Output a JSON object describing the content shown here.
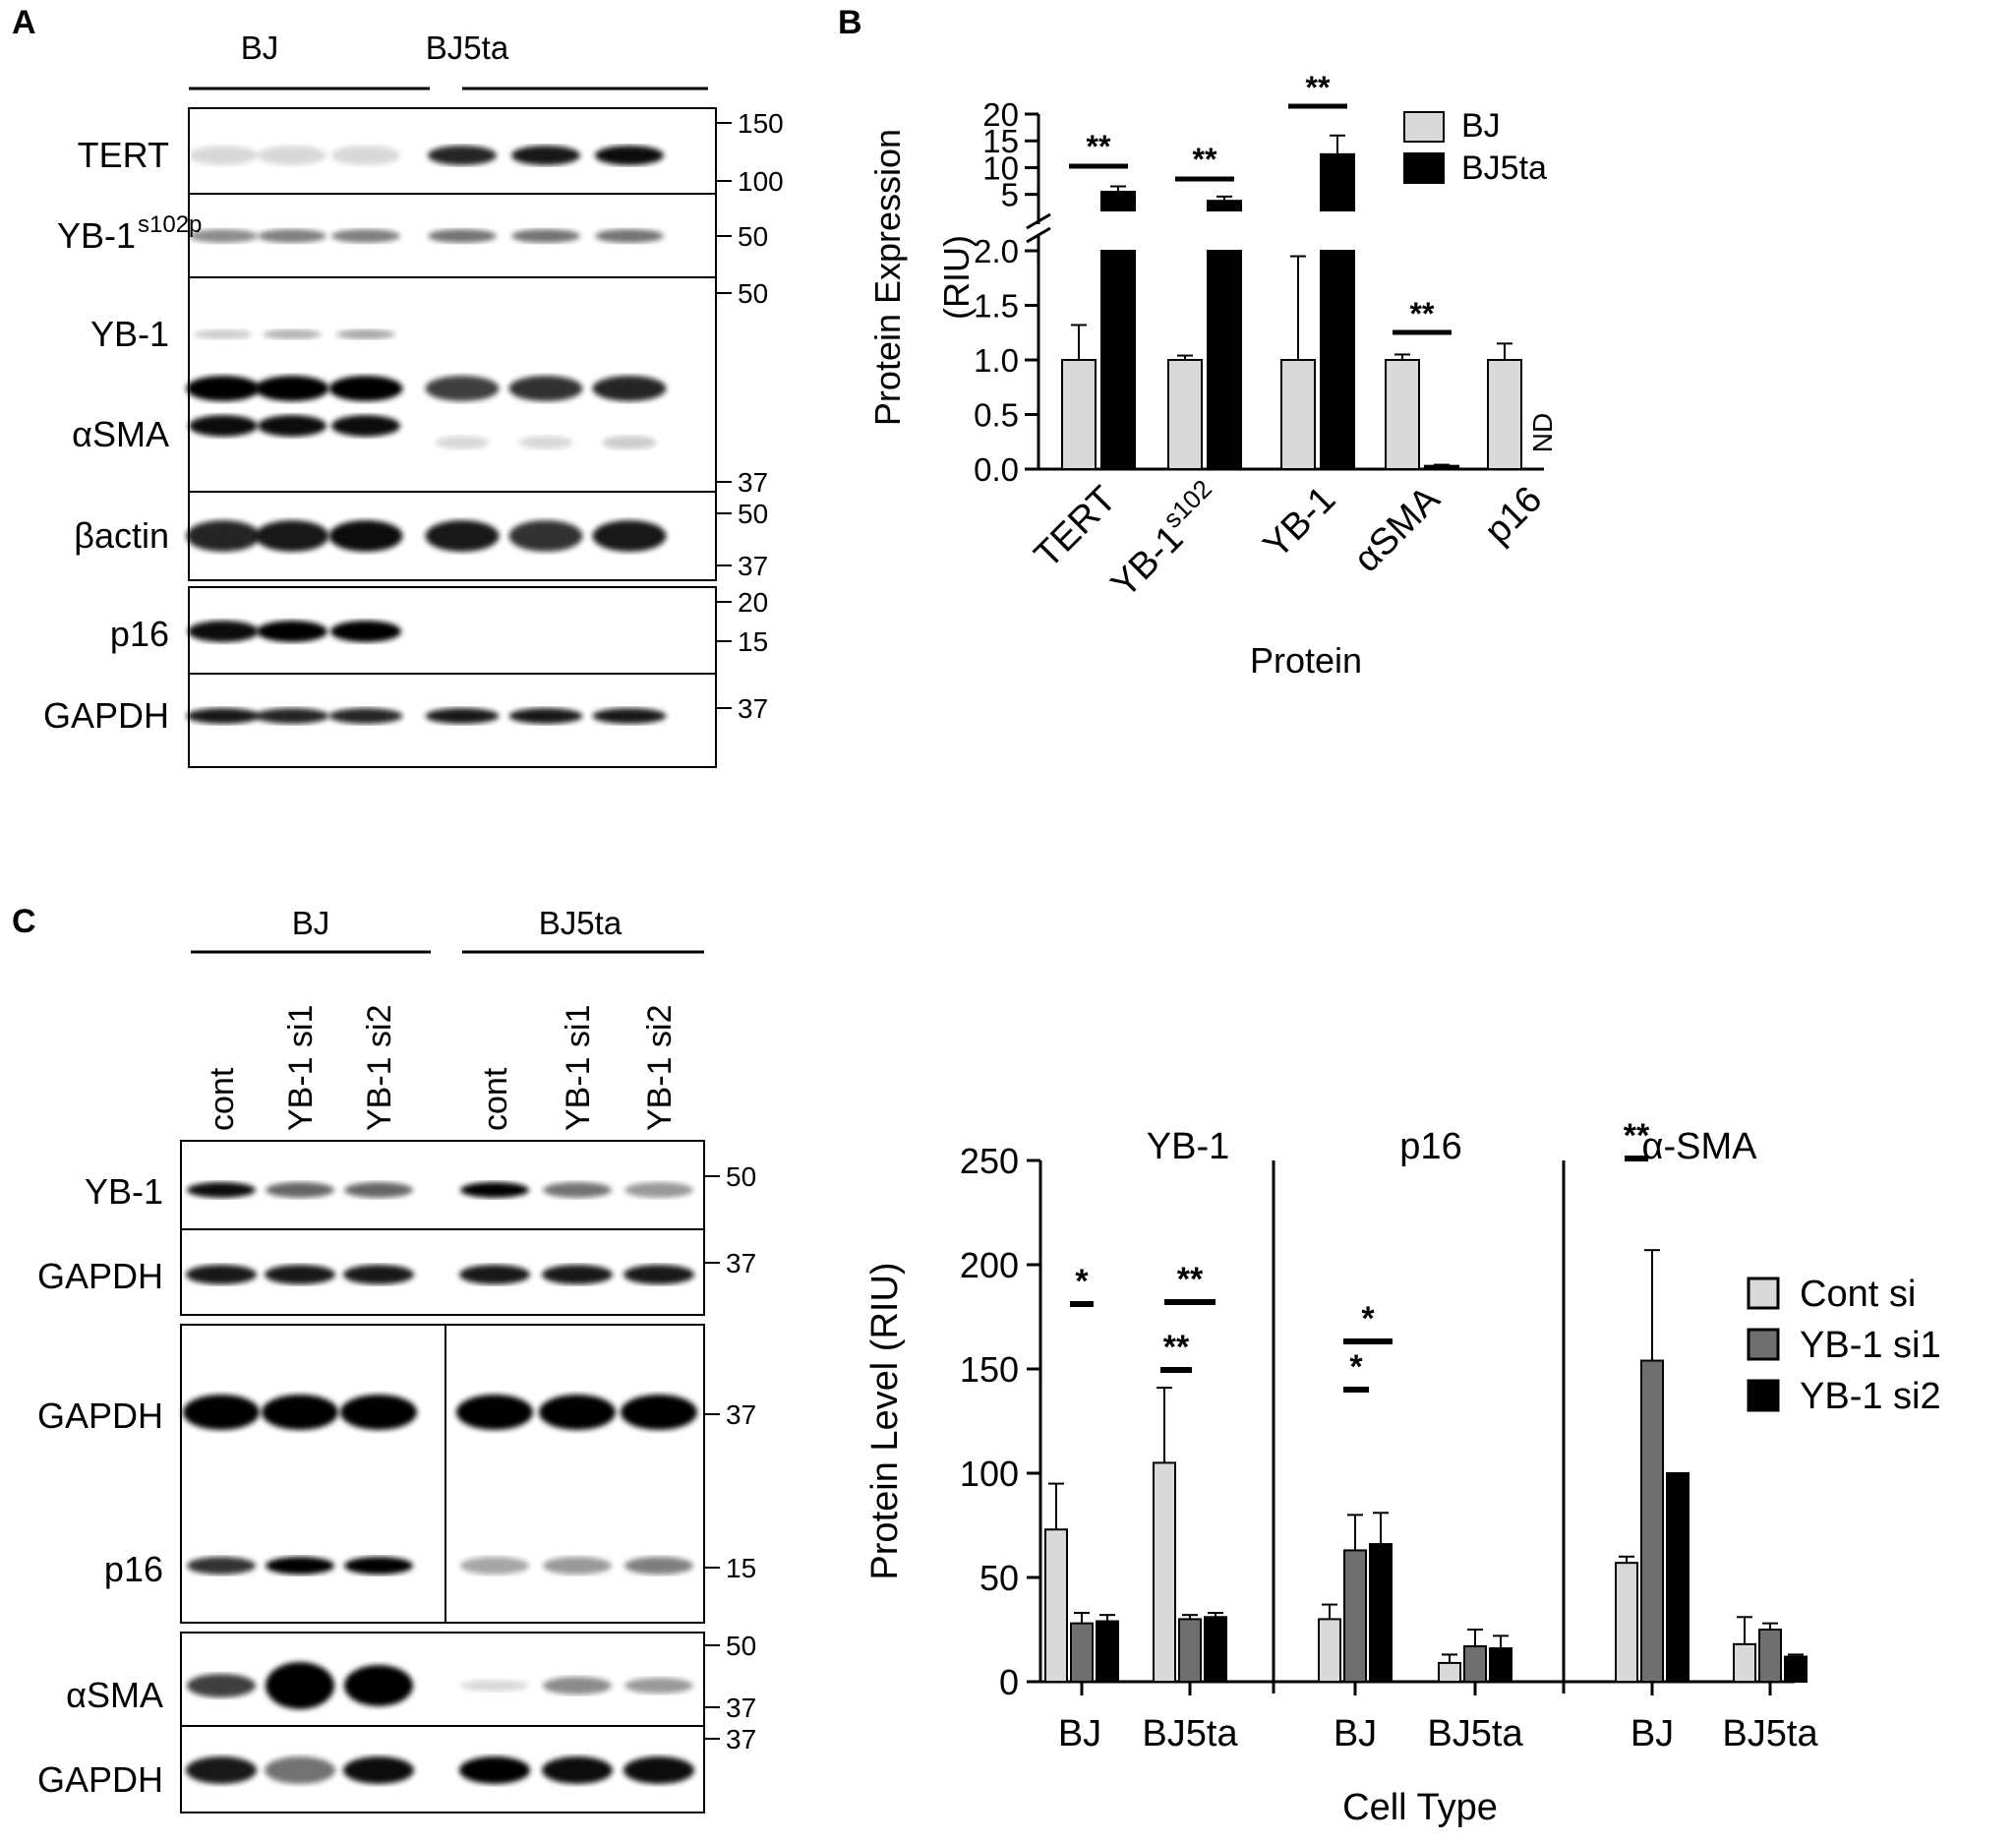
{
  "panels": {
    "A": {
      "letter": "A",
      "groups": [
        "BJ",
        "BJ5ta"
      ],
      "rows": [
        {
          "label": "TERT",
          "mw": [
            "150",
            "100"
          ]
        },
        {
          "label": "YB-1",
          "sup": "s102p",
          "mw": [
            "50"
          ]
        },
        {
          "label": "YB-1",
          "mw": [
            "50"
          ]
        },
        {
          "label": "αSMA",
          "mw": [
            "37"
          ]
        },
        {
          "label": "βactin",
          "mw": [
            "50",
            "37"
          ]
        },
        {
          "label": "p16",
          "mw": [
            "20",
            "15"
          ]
        },
        {
          "label": "GAPDH",
          "mw": [
            "37"
          ]
        }
      ]
    },
    "B": {
      "letter": "B",
      "legend": [
        "BJ",
        "BJ5ta"
      ],
      "nd": "ND",
      "sig": "**"
    },
    "C": {
      "letter": "C",
      "groups": [
        "BJ",
        "BJ5ta"
      ],
      "lanes": [
        "cont",
        "YB-1 si1",
        "YB-1 si2",
        "cont",
        "YB-1 si1",
        "YB-1 si2"
      ],
      "rows": [
        {
          "label": "YB-1",
          "mw": [
            "50"
          ]
        },
        {
          "label": "GAPDH",
          "mw": [
            "37"
          ]
        },
        {
          "label": "GAPDH",
          "mw": [
            "37"
          ]
        },
        {
          "label": "p16",
          "mw": [
            "15"
          ]
        },
        {
          "label": "αSMA",
          "mw": [
            "50",
            "37"
          ]
        },
        {
          "label": "GAPDH",
          "mw": [
            "37"
          ]
        }
      ]
    },
    "D": {
      "legend": [
        "Cont si",
        "YB-1 si1",
        "YB-1 si2"
      ],
      "sig_single": "*",
      "sig_double": "**"
    }
  },
  "chart_data": [
    {
      "type": "bar",
      "panel": "B",
      "categories": [
        "TERT",
        "YB-1s102",
        "YB-1",
        "αSMA",
        "p16"
      ],
      "category_labels": [
        {
          "main": "TERT"
        },
        {
          "main": "YB-1",
          "sup": "s102"
        },
        {
          "main": "YB-1"
        },
        {
          "main": "αSMA"
        },
        {
          "main": "p16"
        }
      ],
      "series": [
        {
          "name": "BJ",
          "color": "#d9d9d9",
          "values": [
            1.0,
            1.0,
            1.0,
            1.0,
            1.0
          ],
          "errors": [
            0.32,
            0.04,
            0.95,
            0.05,
            0.15
          ]
        },
        {
          "name": "BJ5ta",
          "color": "#000000",
          "values": [
            5.5,
            3.8,
            12.5,
            0.03,
            null
          ],
          "errors": [
            1.0,
            0.8,
            3.5,
            0.01,
            null
          ]
        }
      ],
      "xlabel": "Protein",
      "ylabel": "Protein Expression (RIU)",
      "y_lower": {
        "range": [
          0,
          2.0
        ],
        "ticks": [
          "0.0",
          "0.5",
          "1.0",
          "1.5",
          "2.0"
        ]
      },
      "y_upper": {
        "range": [
          2.0,
          20
        ],
        "ticks": [
          "5",
          "10",
          "15",
          "20"
        ]
      },
      "axis_break": true,
      "legend_position": "top-right"
    },
    {
      "type": "bar",
      "panel": "C-quant",
      "facets": [
        "YB-1",
        "p16",
        "α-SMA"
      ],
      "categories": [
        "BJ",
        "BJ5ta"
      ],
      "series": [
        {
          "name": "Cont si",
          "color": "#d9d9d9",
          "values": [
            [
              73,
              105
            ],
            [
              30,
              9
            ],
            [
              57,
              18
            ]
          ],
          "errors": [
            [
              22,
              36
            ],
            [
              7,
              4
            ],
            [
              3,
              13
            ]
          ]
        },
        {
          "name": "YB-1 si1",
          "color": "#6f6f6f",
          "values": [
            [
              28,
              30
            ],
            [
              63,
              17
            ],
            [
              154,
              25
            ]
          ],
          "errors": [
            [
              5,
              2
            ],
            [
              17,
              8
            ],
            [
              53,
              3
            ]
          ]
        },
        {
          "name": "YB-1 si2",
          "color": "#000000",
          "values": [
            [
              29,
              31
            ],
            [
              66,
              16
            ],
            [
              100,
              12
            ]
          ],
          "errors": [
            [
              3,
              2
            ],
            [
              15,
              6
            ],
            [
              0,
              1
            ]
          ]
        }
      ],
      "xlabel": "Cell Type",
      "ylabel": "Protein Level (RIU)",
      "ylim": [
        0,
        250
      ],
      "yticks": [
        "0",
        "50",
        "100",
        "150",
        "200",
        "250"
      ],
      "legend_position": "right"
    }
  ]
}
